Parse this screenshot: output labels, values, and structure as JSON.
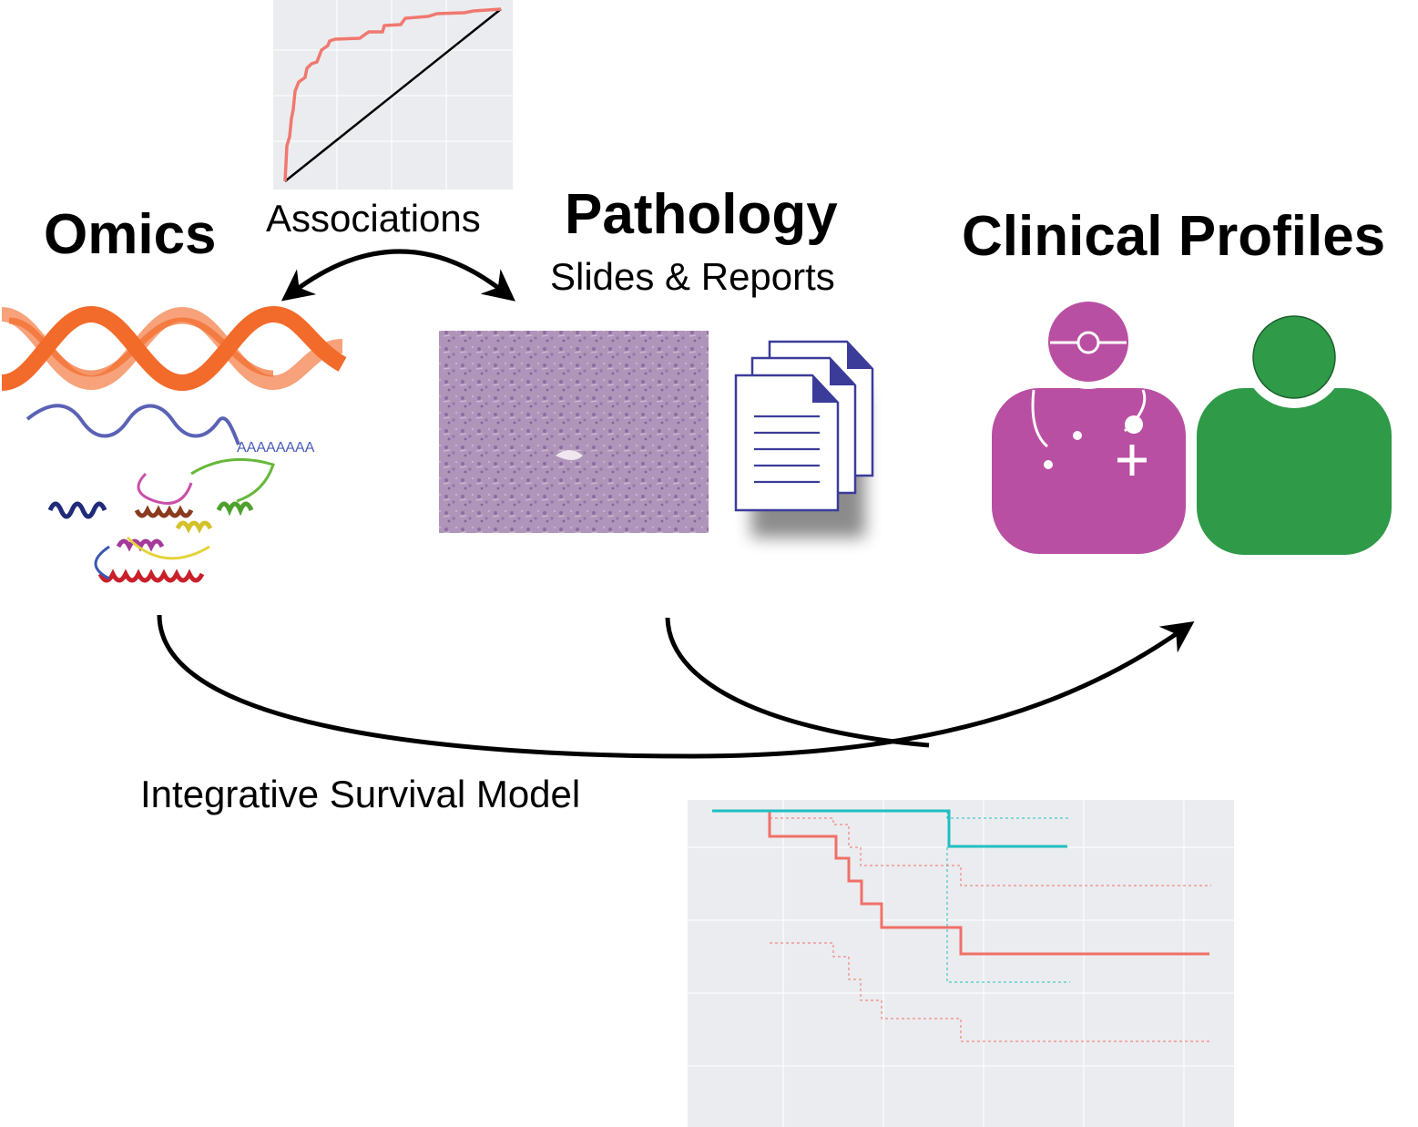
{
  "labels": {
    "omics": "Omics",
    "pathology": "Pathology",
    "pathology_sub": "Slides & Reports",
    "clinical": "Clinical Profiles",
    "associations": "Associations",
    "integrative": "Integrative Survival Model",
    "poly_a": "AAAAAAAA"
  },
  "colors": {
    "dna": "#f26b2a",
    "dna_light": "#f7a27a",
    "mrna": "#5a62b5",
    "doctor": "#b94fa3",
    "patient": "#2f9a48",
    "tissue": "#a98ab4",
    "doc_fold": "#3b3c9a",
    "roc_curve": "#f07870",
    "km_teal": "#1fbfc2",
    "km_salmon": "#f07068",
    "plot_bg": "#ebecef"
  },
  "icons": [
    "dna-helix-icon",
    "mrna-icon",
    "protein-structure-icon",
    "histology-slide-icon",
    "documents-icon",
    "doctor-icon",
    "patient-icon"
  ]
}
